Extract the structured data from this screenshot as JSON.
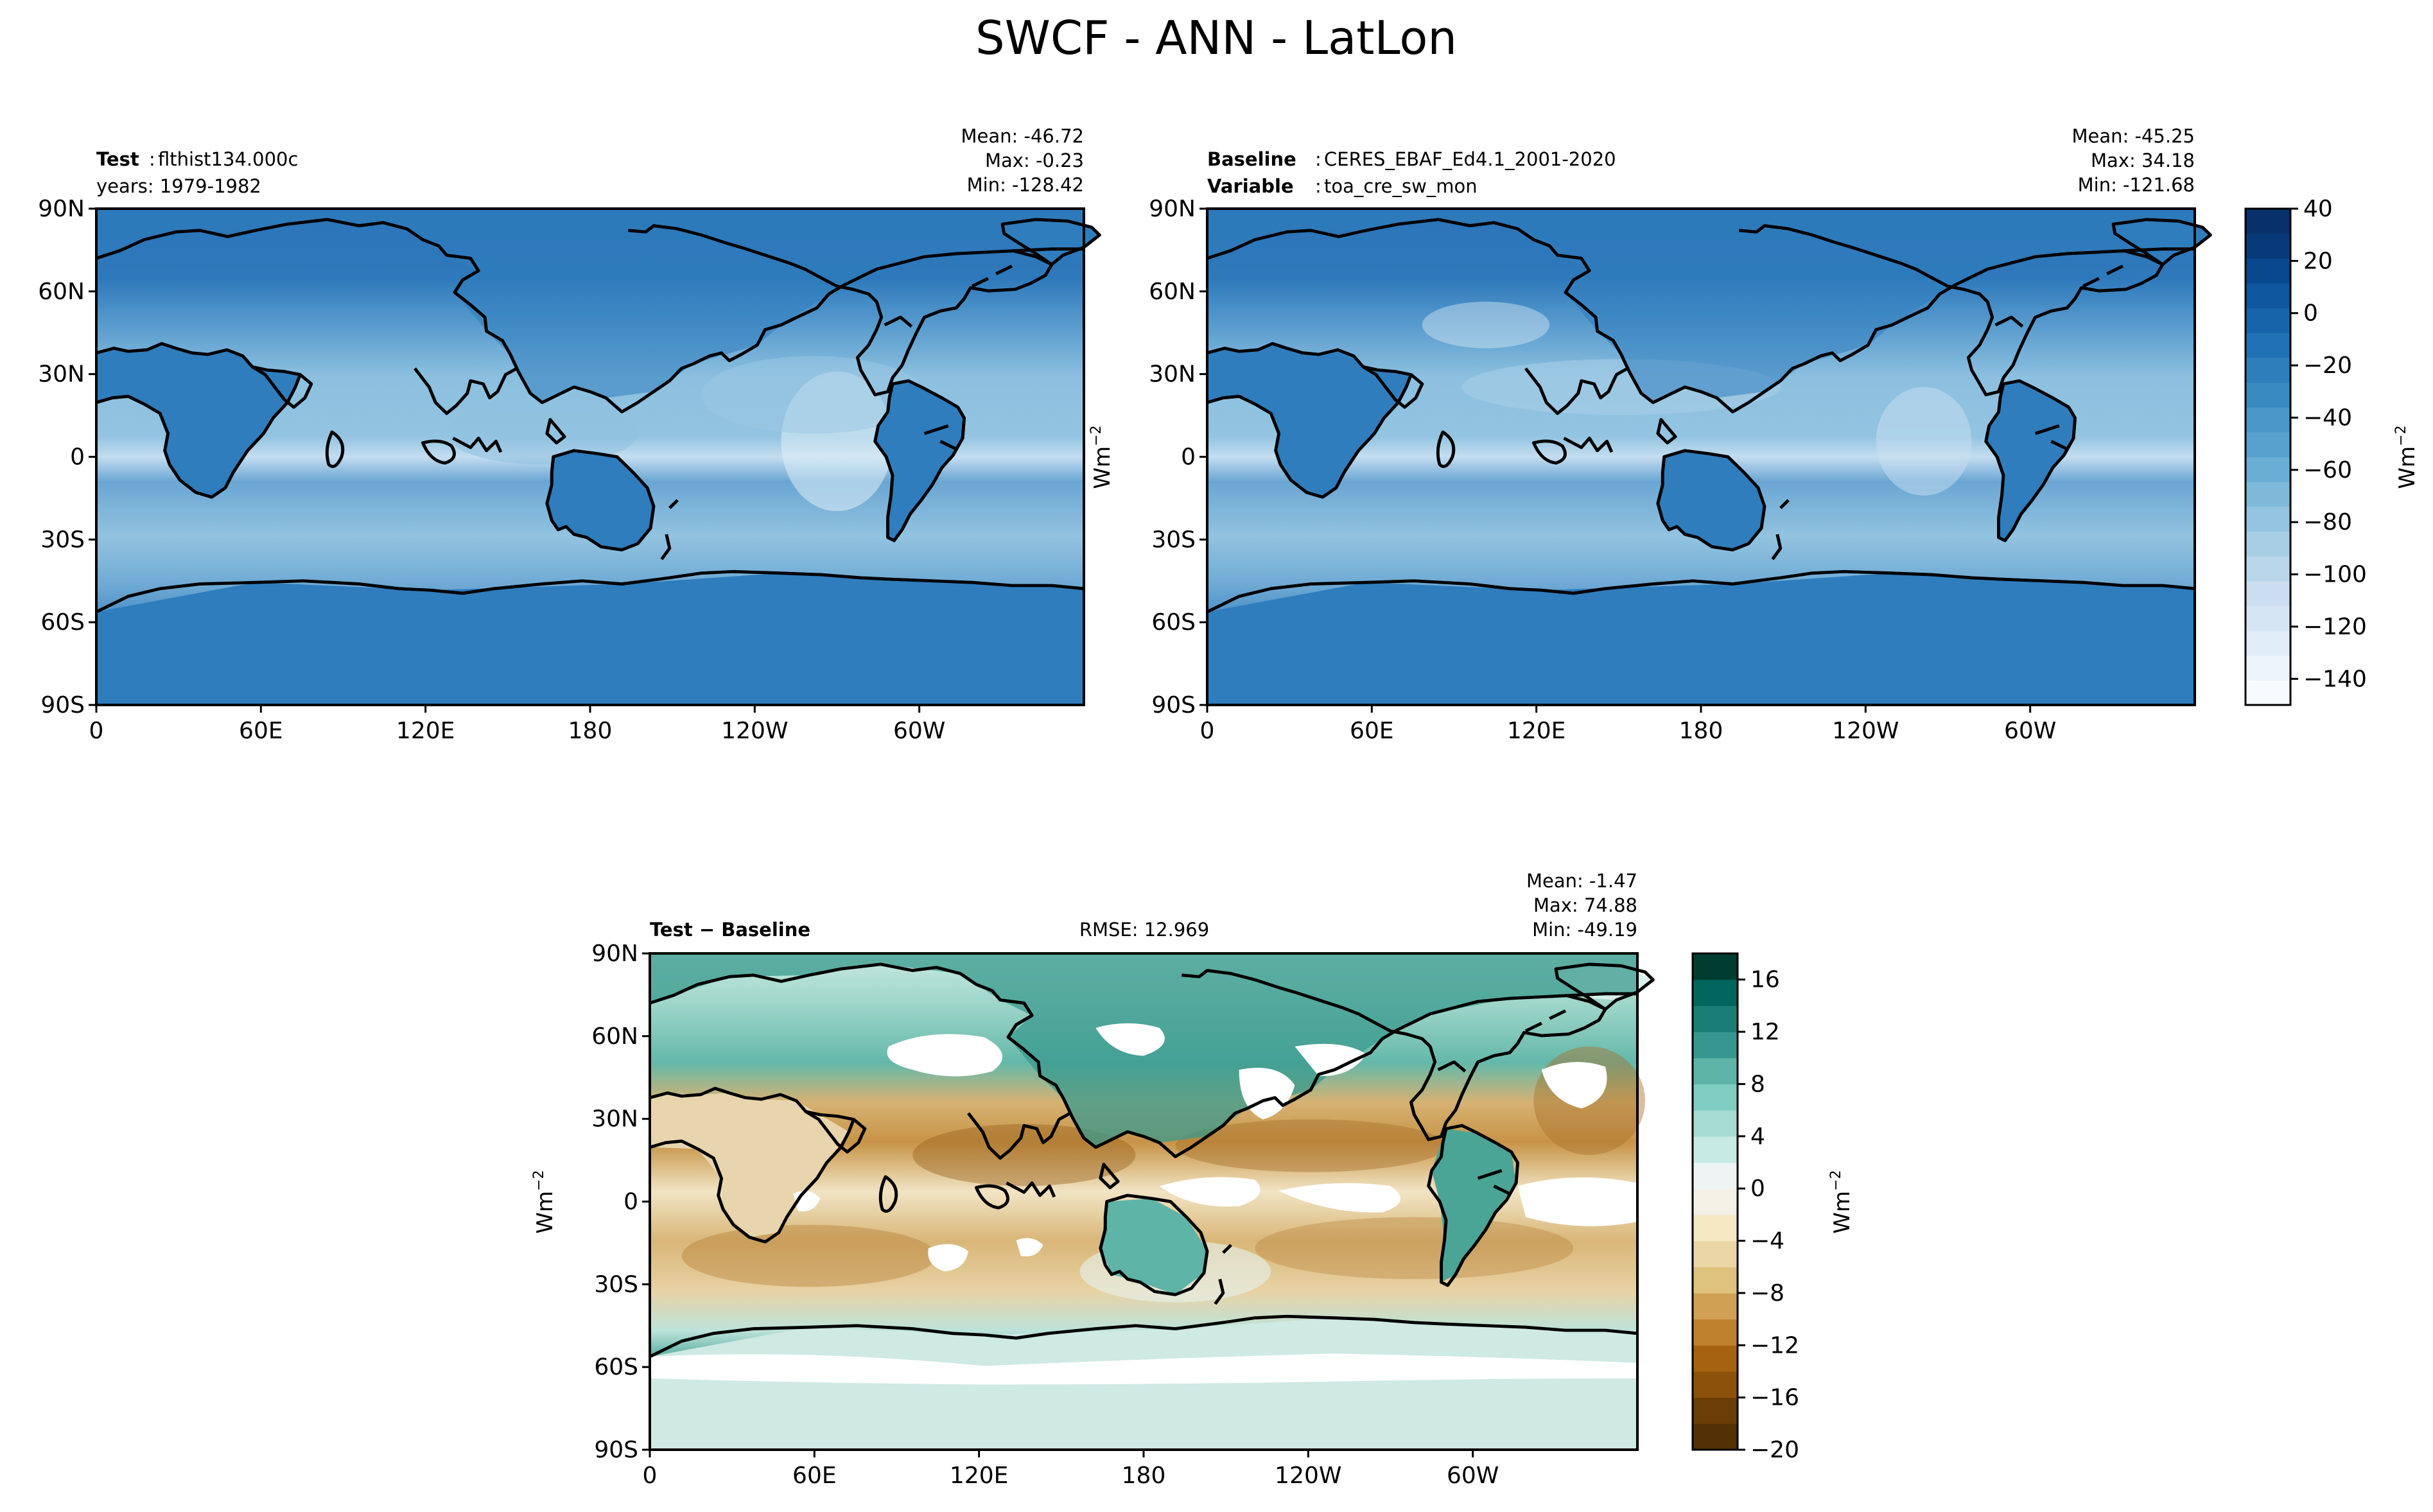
{
  "figure": {
    "title": "SWCF - ANN - LatLon"
  },
  "chart_data": [
    {
      "type": "heatmap",
      "panel": "test",
      "label_bold": "Test",
      "label_text": "flthist134.000c",
      "label2_text": "years: 1979-1982",
      "stats": {
        "mean": "Mean: -46.72",
        "max": "Max: -0.23",
        "min": "Min: -128.42"
      },
      "x_ticks": [
        "0",
        "60E",
        "120E",
        "180",
        "120W",
        "60W"
      ],
      "y_ticks": [
        "90N",
        "60N",
        "30N",
        "0",
        "30S",
        "60S",
        "90S"
      ],
      "xlim": [
        0,
        360
      ],
      "ylim": [
        -90,
        90
      ],
      "colormap": "Blues_r",
      "color_range": [
        -150,
        40
      ]
    },
    {
      "type": "heatmap",
      "panel": "baseline",
      "label_bold": "Baseline",
      "label_text": "CERES_EBAF_Ed4.1_2001-2020",
      "label2_bold": "Variable",
      "label2_text": "toa_cre_sw_mon",
      "stats": {
        "mean": "Mean: -45.25",
        "max": "Max: 34.18",
        "min": "Min: -121.68"
      },
      "x_ticks": [
        "0",
        "60E",
        "120E",
        "180",
        "120W",
        "60W"
      ],
      "y_ticks": [
        "90N",
        "60N",
        "30N",
        "0",
        "30S",
        "60S",
        "90S"
      ],
      "ylabel": "Wm$^{-2}$",
      "xlim": [
        0,
        360
      ],
      "ylim": [
        -90,
        90
      ],
      "colormap": "Blues_r",
      "color_range": [
        -150,
        40
      ]
    },
    {
      "type": "heatmap",
      "panel": "difference",
      "label_bold": "Test − Baseline",
      "rmse": "RMSE: 12.969",
      "stats": {
        "mean": "Mean: -1.47",
        "max": "Max: 74.88",
        "min": "Min: -49.19"
      },
      "x_ticks": [
        "0",
        "60E",
        "120E",
        "180",
        "120W",
        "60W"
      ],
      "y_ticks": [
        "90N",
        "60N",
        "30N",
        "0",
        "30S",
        "60S",
        "90S"
      ],
      "ylabel": "Wm$^{-2}$",
      "xlim": [
        0,
        360
      ],
      "ylim": [
        -90,
        90
      ],
      "colormap": "BrBG",
      "color_range": [
        -20,
        18
      ]
    }
  ],
  "colorbars": {
    "main": {
      "ticks": [
        "40",
        "20",
        "0",
        "−20",
        "−40",
        "−60",
        "−80",
        "−100",
        "−120",
        "−140"
      ],
      "tick_values": [
        40,
        20,
        0,
        -20,
        -40,
        -60,
        -80,
        -100,
        -120,
        -140
      ],
      "vmin": -150,
      "vmax": 40,
      "label": "Wm",
      "label_sup": "−2",
      "colors": [
        "#f7fbff",
        "#ecf4fc",
        "#e1edf8",
        "#d5e5f4",
        "#cadef0",
        "#bad6eb",
        "#a8cee4",
        "#94c4df",
        "#7fb9da",
        "#6aaed6",
        "#58a1cf",
        "#4a97c9",
        "#3a8ac2",
        "#2e7ebc",
        "#2171b5",
        "#1864aa",
        "#0f579f",
        "#08488e",
        "#083a7a",
        "#08306b"
      ]
    },
    "diff": {
      "ticks": [
        "16",
        "12",
        "8",
        "4",
        "0",
        "−4",
        "−8",
        "−12",
        "−16",
        "−20"
      ],
      "tick_values": [
        16,
        12,
        8,
        4,
        0,
        -4,
        -8,
        -12,
        -16,
        -20
      ],
      "vmin": -20,
      "vmax": 18,
      "label": "Wm",
      "label_sup": "−2",
      "colors": [
        "#543005",
        "#6b3d07",
        "#8c510a",
        "#a5620f",
        "#bf812d",
        "#d0a155",
        "#dfc27d",
        "#ebd6a6",
        "#f6e8c3",
        "#f5f0e6",
        "#eef4f3",
        "#c7eae5",
        "#a6dcd3",
        "#80cdc1",
        "#5fb4a8",
        "#35978f",
        "#1b7e76",
        "#01665e",
        "#003c30"
      ]
    }
  }
}
